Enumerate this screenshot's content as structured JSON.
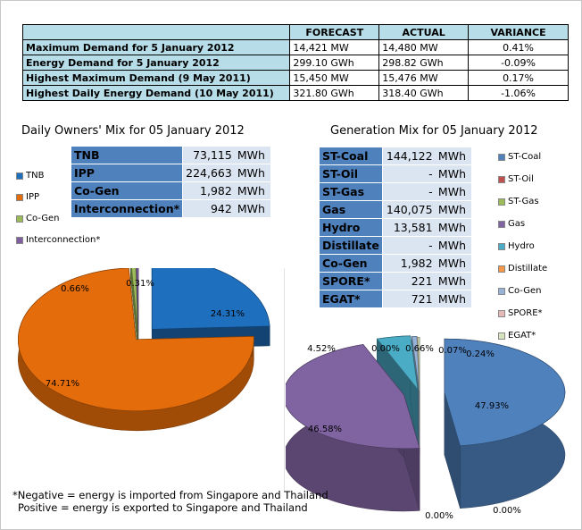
{
  "summary": {
    "headers": [
      "",
      "FORECAST",
      "ACTUAL",
      "VARIANCE"
    ],
    "rows": [
      {
        "label": "Maximum Demand for 5 January 2012",
        "forecast": "14,421",
        "forecast_unit": "MW",
        "actual": "14,480",
        "actual_unit": "MW",
        "variance": "0.41%"
      },
      {
        "label": "Energy Demand for 5 January 2012",
        "forecast": "299.10",
        "forecast_unit": "GWh",
        "actual": "298.82",
        "actual_unit": "GWh",
        "variance": "-0.09%"
      },
      {
        "label": "Highest Maximum Demand (9 May 2011)",
        "forecast": "15,450",
        "forecast_unit": "MW",
        "actual": "15,476",
        "actual_unit": "MW",
        "variance": "0.17%"
      },
      {
        "label": "Highest Daily Energy Demand (10 May 2011)",
        "forecast": "321.80",
        "forecast_unit": "GWh",
        "actual": "318.40",
        "actual_unit": "GWh",
        "variance": "-1.06%"
      }
    ]
  },
  "owners": {
    "title": "Daily Owners' Mix for 05 January 2012",
    "unit": "MWh",
    "rows": [
      {
        "name": "TNB",
        "value": "73,115"
      },
      {
        "name": "IPP",
        "value": "224,663"
      },
      {
        "name": "Co-Gen",
        "value": "1,982"
      },
      {
        "name": "Interconnection*",
        "value": "942"
      }
    ],
    "legend": [
      "TNB",
      "IPP",
      "Co-Gen",
      "Interconnection*"
    ]
  },
  "generation": {
    "title": "Generation Mix for 05 January 2012",
    "unit": "MWh",
    "rows": [
      {
        "name": "ST-Coal",
        "value": "144,122"
      },
      {
        "name": "ST-Oil",
        "value": "-"
      },
      {
        "name": "ST-Gas",
        "value": "-"
      },
      {
        "name": "Gas",
        "value": "140,075"
      },
      {
        "name": "Hydro",
        "value": "13,581"
      },
      {
        "name": "Distillate",
        "value": "-"
      },
      {
        "name": "Co-Gen",
        "value": "1,982"
      },
      {
        "name": "SPORE*",
        "value": "221"
      },
      {
        "name": "EGAT*",
        "value": "721"
      }
    ],
    "legend": [
      "ST-Coal",
      "ST-Oil",
      "ST-Gas",
      "Gas",
      "Hydro",
      "Distillate",
      "Co-Gen",
      "SPORE*",
      "EGAT*"
    ]
  },
  "note": {
    "line1": "*Negative = energy is imported from Singapore and Thailand",
    "line2": "Positive = energy is exported to Singapore and Thailand"
  },
  "chart_data": [
    {
      "type": "pie",
      "title": "Daily Owners' Mix for 05 January 2012",
      "labels": [
        "TNB",
        "IPP",
        "Co-Gen",
        "Interconnection*"
      ],
      "values": [
        24.31,
        74.71,
        0.66,
        0.31
      ],
      "value_labels": [
        "24.31%",
        "74.71%",
        "0.66%",
        "0.31%"
      ],
      "colors": [
        "#1f6fbf",
        "#e46c0a",
        "#9bbb59",
        "#7f5f9f"
      ],
      "legend_position": "left",
      "style": "3d-exploded"
    },
    {
      "type": "pie",
      "title": "Generation Mix for 05 January 2012",
      "labels": [
        "ST-Coal",
        "ST-Oil",
        "ST-Gas",
        "Gas",
        "Hydro",
        "Distillate",
        "Co-Gen",
        "SPORE*",
        "EGAT*"
      ],
      "values": [
        47.93,
        0.0,
        0.0,
        46.58,
        4.52,
        0.0,
        0.66,
        0.07,
        0.24
      ],
      "value_labels": [
        "47.93%",
        "0.00%",
        "0.00%",
        "46.58%",
        "4.52%",
        "0.00%",
        "0.66%",
        "0.07%",
        "0.24%"
      ],
      "colors": [
        "#4f81bd",
        "#c0504d",
        "#9bbb59",
        "#8064a2",
        "#4bacc6",
        "#f79646",
        "#95b3d7",
        "#e6b9b8",
        "#d7e4bd"
      ],
      "legend_position": "right",
      "style": "3d-exploded"
    }
  ]
}
